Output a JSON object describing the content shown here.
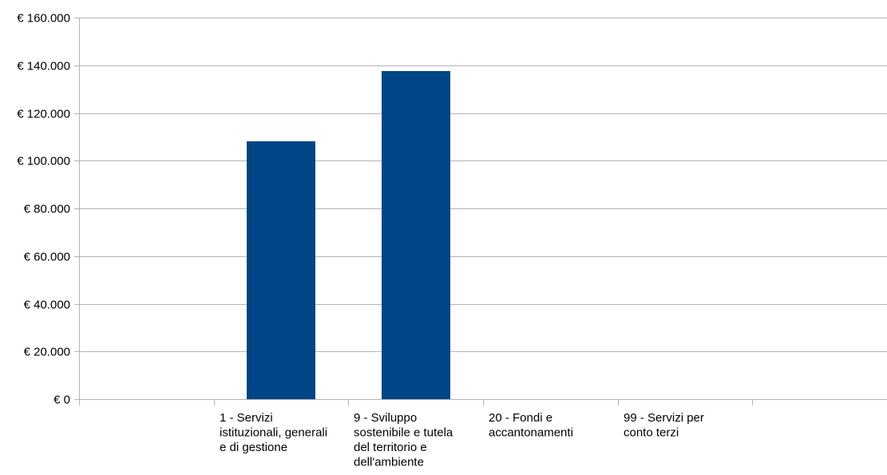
{
  "chart_data": {
    "type": "bar",
    "categories": [
      "",
      "1 - Servizi istituzionali, generali e di gestione",
      "9 - Sviluppo sostenibile e tutela del territorio e dell'ambiente",
      "20 - Fondi e accantonamenti",
      "99 - Servizi per conto terzi",
      ""
    ],
    "category_label_lines": [
      [],
      [
        "1 - Servizi",
        "istituzionali, generali",
        "e di gestione"
      ],
      [
        "9 - Sviluppo",
        "sostenibile e tutela",
        "del territorio e",
        "dell'ambiente"
      ],
      [
        "20 - Fondi e",
        "accantonamenti"
      ],
      [
        "99 - Servizi per",
        "conto terzi"
      ],
      []
    ],
    "values": [
      0,
      108000,
      137500,
      0,
      0,
      0
    ],
    "ylim": [
      0,
      160000
    ],
    "yticks": [
      0,
      20000,
      40000,
      60000,
      80000,
      100000,
      120000,
      140000,
      160000
    ],
    "ytick_labels": [
      "€ 0",
      "€ 20.000",
      "€ 40.000",
      "€ 60.000",
      "€ 80.000",
      "€ 100.000",
      "€ 120.000",
      "€ 140.000",
      "€ 160.000"
    ],
    "grid": true,
    "bar_color": "#004586",
    "grid_color": "#b3b3b3",
    "title": "",
    "xlabel": "",
    "ylabel": ""
  }
}
